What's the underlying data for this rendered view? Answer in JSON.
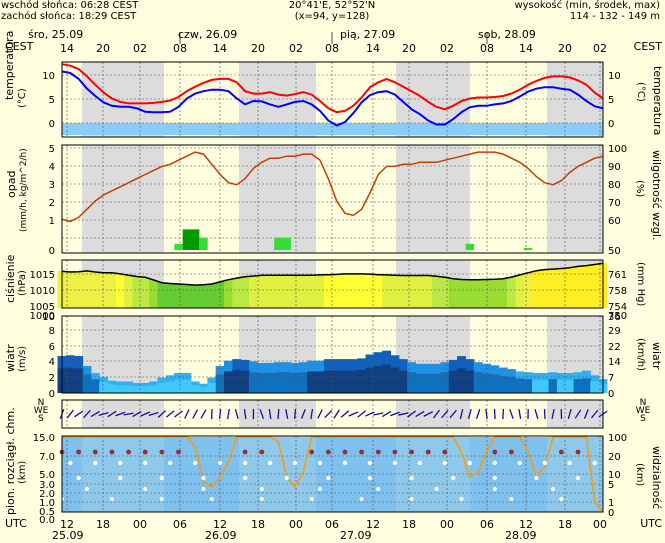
{
  "header": {
    "sunrise": "wschód słońca: 06:28 CEST",
    "sunset": "zachód słońca: 18:29 CEST",
    "coords": "20°41'E, 52°52'N",
    "grid": "(x=94,  y=128)",
    "elev_label": "wysokość (min, środek, max)",
    "elev_values": "114 - 132 - 149 m"
  },
  "top_axis": {
    "tz": "CEST",
    "days": [
      "śro, 25.09",
      "czw, 26.09",
      "pią, 27.09",
      "sob, 28.09"
    ],
    "hours": [
      "14",
      "20",
      "02",
      "08",
      "14",
      "20",
      "02",
      "08",
      "14",
      "20",
      "02",
      "08",
      "14",
      "20",
      "02"
    ]
  },
  "bottom_axis": {
    "tz": "UTC",
    "hours": [
      "12",
      "18",
      "00",
      "06",
      "12",
      "18",
      "00",
      "06",
      "12",
      "18",
      "00",
      "06",
      "12",
      "18",
      "00"
    ],
    "dates": [
      "25.09",
      "26.09",
      "27.09",
      "28.09"
    ]
  },
  "colors": {
    "night": "#DCDCDC",
    "background": "#FFFFE0",
    "tmax": "#FF0000",
    "tmin": "#0000FF",
    "humidity": "#C04000",
    "pressure_line": "#000000"
  },
  "panels": {
    "temperature": {
      "left_label": "temperatura",
      "left_unit": "(°C)",
      "right_label": "temperatura",
      "right_unit": "(°C)",
      "ticks": [
        "10",
        "5",
        "0"
      ],
      "right_ticks": [
        "10",
        "5",
        "0"
      ]
    },
    "precip": {
      "left_label": "opad",
      "left_unit": "(mm/h, kg/m^2/h)",
      "right_label": "wilgotność wzgl.",
      "right_unit": "(%)",
      "ticks": [
        "5",
        "4",
        "3",
        "2",
        "1",
        "0"
      ],
      "right_ticks": [
        "100",
        "90",
        "80",
        "70",
        "60",
        "50"
      ]
    },
    "pressure": {
      "left_label": "ciśnienie",
      "left_unit": "(hPa)",
      "right_unit": "(mm Hg)",
      "ticks": [
        "1015",
        "1010",
        "1005",
        "1000"
      ],
      "right_ticks": [
        "761",
        "758",
        "754",
        "750"
      ]
    },
    "wind": {
      "left_label": "wiatr",
      "left_unit": "(m/s)",
      "right_label": "wiatr",
      "right_unit": "(km/h)",
      "ticks": [
        "10",
        "8",
        "6",
        "4",
        "2",
        "0"
      ],
      "right_ticks": [
        "36",
        "29",
        "22",
        "14",
        "7",
        "0"
      ]
    },
    "compass": {
      "n": "N",
      "w": "W",
      "e": "E",
      "s": "S"
    },
    "cloud": {
      "left_label": "pion. rozciągł. chm.",
      "left_unit": "(km)",
      "right_label": "widzialność",
      "right_unit": "(km)",
      "ticks": [
        "15.0",
        "7.0",
        "5.0",
        "3.0",
        "2.0",
        "1.0",
        "0.5",
        "0.0"
      ],
      "right_ticks": [
        "100",
        "20",
        "10",
        "5",
        "1",
        "0"
      ]
    }
  },
  "chart_data": [
    {
      "type": "line",
      "title": "temperatura",
      "ylabel": "(°C)",
      "ylim": [
        -2,
        13
      ],
      "series": [
        {
          "values": [
            12.0,
            11.7,
            11.0,
            9.5,
            7.8,
            6.2,
            5.0,
            4.3,
            4.0,
            4.0,
            4.0,
            4.1,
            4.3,
            4.6,
            5.3,
            6.5,
            7.4,
            8.2,
            8.8,
            9.0,
            9.0,
            8.3,
            6.5,
            6.0,
            6.0,
            6.3,
            5.8,
            5.6,
            5.9,
            6.3,
            5.8,
            4.5,
            3.0,
            2.2,
            2.5,
            3.5,
            5.2,
            7.3,
            8.3,
            9.0,
            8.3,
            7.4,
            6.5,
            5.5,
            4.3,
            3.3,
            2.8,
            3.5,
            4.5,
            5.0,
            5.2,
            5.2,
            5.3,
            5.5,
            6.0,
            6.8,
            7.8,
            8.6,
            9.2,
            9.5,
            9.5,
            9.3,
            8.7,
            7.8,
            6.2,
            5.0
          ]
        },
        {
          "values": [
            10.5,
            10.2,
            9.0,
            7.0,
            5.5,
            4.2,
            3.5,
            3.3,
            3.3,
            3.0,
            2.3,
            2.2,
            2.2,
            2.3,
            3.3,
            5.0,
            6.0,
            6.5,
            6.8,
            6.8,
            6.5,
            5.0,
            3.8,
            4.5,
            4.4,
            3.8,
            3.3,
            3.8,
            4.3,
            4.5,
            3.8,
            2.5,
            0.5,
            -0.5,
            0.2,
            2.0,
            4.2,
            5.7,
            6.3,
            6.5,
            5.8,
            4.3,
            2.8,
            1.8,
            0.5,
            -0.3,
            -0.3,
            0.8,
            2.2,
            3.2,
            3.5,
            3.5,
            3.8,
            4.0,
            4.5,
            5.4,
            6.4,
            7.0,
            7.3,
            7.3,
            7.0,
            6.8,
            5.8,
            4.5,
            3.4,
            3.0
          ]
        }
      ]
    },
    {
      "type": "bar",
      "title": "opad",
      "ylabel": "(mm/h, kg/m^2/h)",
      "ylim": [
        0,
        5
      ],
      "values": [
        0,
        0,
        0,
        0,
        0,
        0,
        0,
        0,
        0,
        0,
        0,
        0,
        0,
        0,
        0.3,
        1.0,
        1.0,
        0.6,
        0,
        0,
        0,
        0,
        0,
        0,
        0,
        0,
        0.6,
        0.6,
        0,
        0,
        0,
        0,
        0,
        0,
        0,
        0,
        0,
        0,
        0,
        0,
        0,
        0,
        0,
        0,
        0,
        0,
        0,
        0,
        0,
        0.3,
        0,
        0,
        0,
        0,
        0,
        0,
        0.1,
        0,
        0,
        0,
        0,
        0,
        0,
        0,
        0,
        0
      ]
    },
    {
      "type": "line",
      "title": "wilgotność wzgl.",
      "ylabel": "(%)",
      "ylim": [
        50,
        100
      ],
      "values": [
        65,
        64,
        66,
        70,
        74,
        77,
        79,
        81,
        83,
        85,
        87,
        89,
        91,
        92,
        94,
        96,
        98,
        97,
        92,
        87,
        83,
        82,
        85,
        90,
        93,
        95,
        95,
        96,
        96,
        97,
        97,
        94,
        85,
        74,
        68,
        67,
        70,
        78,
        87,
        91,
        91,
        92,
        92,
        93,
        93,
        93,
        94,
        95,
        96,
        97,
        98,
        98,
        98,
        97,
        95,
        93,
        90,
        86,
        83,
        82,
        84,
        88,
        91,
        93,
        95,
        96
      ]
    },
    {
      "type": "line",
      "title": "ciśnienie",
      "ylabel": "(hPa)",
      "ylim": [
        1000,
        1018
      ],
      "values": [
        1013.8,
        1013.5,
        1013.6,
        1013.9,
        1013.5,
        1013.2,
        1013.2,
        1012.8,
        1012.3,
        1011.8,
        1011.5,
        1010.5,
        1009.5,
        1009.2,
        1009.0,
        1008.8,
        1008.6,
        1008.7,
        1009.0,
        1009.8,
        1010.6,
        1011.2,
        1011.7,
        1012.0,
        1012.3,
        1012.3,
        1012.3,
        1012.3,
        1012.3,
        1012.3,
        1012.3,
        1012.4,
        1012.5,
        1012.6,
        1012.8,
        1012.8,
        1012.8,
        1012.7,
        1012.5,
        1012.4,
        1012.3,
        1012.2,
        1012.2,
        1012.2,
        1012.2,
        1011.9,
        1011.5,
        1011.0,
        1010.7,
        1010.6,
        1010.6,
        1010.7,
        1010.8,
        1011.0,
        1011.6,
        1012.4,
        1013.2,
        1014.0,
        1014.4,
        1014.6,
        1014.8,
        1015.1,
        1015.6,
        1015.9,
        1016.3,
        1016.8
      ]
    },
    {
      "type": "area",
      "title": "wiatr",
      "ylabel": "(m/s)",
      "ylim": [
        0,
        10
      ],
      "series": [
        {
          "values": [
            4.8,
            4.9,
            4.8,
            3.5,
            2.6,
            2.1,
            1.6,
            1.5,
            1.5,
            1.3,
            1.3,
            1.5,
            2.0,
            2.3,
            2.6,
            2.6,
            1.5,
            1.2,
            2.0,
            3.5,
            4.2,
            4.4,
            4.3,
            4.1,
            3.9,
            3.9,
            4.0,
            4.0,
            3.9,
            4.0,
            4.2,
            4.2,
            4.4,
            4.4,
            4.4,
            4.4,
            4.5,
            5.0,
            5.3,
            5.5,
            4.9,
            4.4,
            4.0,
            3.8,
            3.8,
            3.8,
            4.0,
            4.3,
            4.8,
            4.4,
            4.0,
            3.8,
            3.6,
            3.3,
            3.1,
            2.8,
            2.7,
            2.6,
            2.6,
            2.7,
            2.6,
            2.6,
            2.7,
            2.9,
            2.3,
            1.8
          ]
        },
        {
          "values": [
            3.2,
            3.3,
            3.2,
            2.4,
            1.8,
            1.4,
            1.1,
            1.0,
            1.0,
            0.9,
            0.9,
            1.0,
            1.3,
            1.5,
            1.7,
            1.7,
            1.0,
            0.8,
            1.3,
            2.4,
            2.8,
            3.0,
            2.9,
            2.7,
            2.6,
            2.6,
            2.7,
            2.7,
            2.6,
            2.7,
            2.8,
            2.8,
            2.9,
            2.9,
            2.9,
            2.9,
            3.0,
            3.3,
            3.5,
            3.7,
            3.3,
            2.9,
            2.7,
            2.5,
            2.5,
            2.5,
            2.7,
            2.9,
            3.2,
            2.9,
            2.7,
            2.5,
            2.4,
            2.2,
            2.1,
            1.9,
            1.8,
            1.7,
            1.7,
            1.8,
            1.7,
            1.7,
            1.8,
            1.9,
            1.5,
            1.2
          ]
        }
      ]
    },
    {
      "type": "line",
      "title": "pion. rozciągł. chm.",
      "ylabel": "(km)",
      "values": [
        15,
        15,
        15,
        15,
        15,
        15,
        15,
        15,
        15,
        15,
        15,
        15,
        15,
        15,
        15,
        15,
        13,
        6,
        5,
        7,
        10,
        15,
        15,
        15,
        15,
        15,
        14,
        7,
        5,
        8,
        15,
        15,
        15,
        15,
        15,
        15,
        15,
        15,
        15,
        15,
        15,
        15,
        15,
        15,
        15,
        15,
        15,
        15,
        12,
        7,
        8,
        12,
        15,
        15,
        15,
        15,
        12,
        7,
        9,
        15,
        15,
        15,
        15,
        15,
        2,
        0
      ]
    }
  ]
}
